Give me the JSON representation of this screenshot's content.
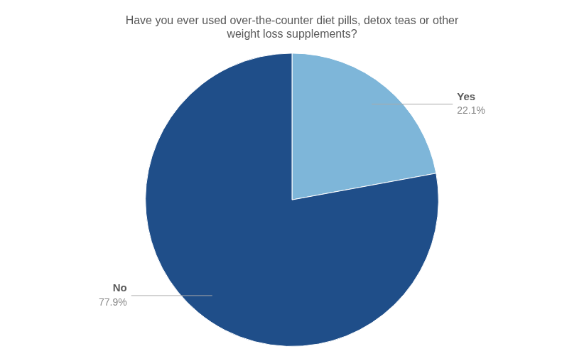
{
  "chart_data": {
    "type": "pie",
    "title": "Have you ever used over-the-counter diet pills, detox teas or other\nweight loss supplements?",
    "categories": [
      "Yes",
      "No"
    ],
    "values": [
      22.1,
      77.9
    ],
    "value_labels": [
      "22.1%",
      "77.9%"
    ],
    "colors": [
      "#7EB6D9",
      "#1F4E89"
    ],
    "data_labels": true,
    "legend": false
  }
}
